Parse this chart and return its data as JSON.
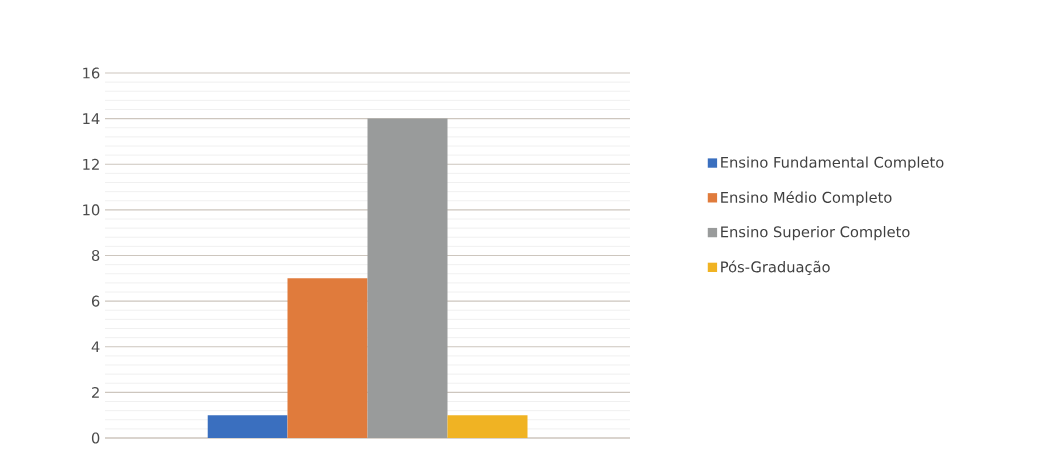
{
  "chart_data": {
    "type": "bar",
    "categories": [
      null
    ],
    "series": [
      {
        "name": "Ensino Fundamental Completo",
        "color": "#3a6fbf",
        "values": [
          1
        ]
      },
      {
        "name": "Ensino Médio Completo",
        "color": "#e07b3c",
        "values": [
          7
        ]
      },
      {
        "name": "Ensino Superior Completo",
        "color": "#999b9b",
        "values": [
          14
        ]
      },
      {
        "name": "Pós-Graduação",
        "color": "#f0b323",
        "values": [
          1
        ]
      }
    ],
    "ylim": [
      0,
      16
    ],
    "yticks": [
      0,
      2,
      4,
      6,
      8,
      10,
      12,
      14,
      16
    ],
    "grid": "y",
    "legend": "right"
  }
}
